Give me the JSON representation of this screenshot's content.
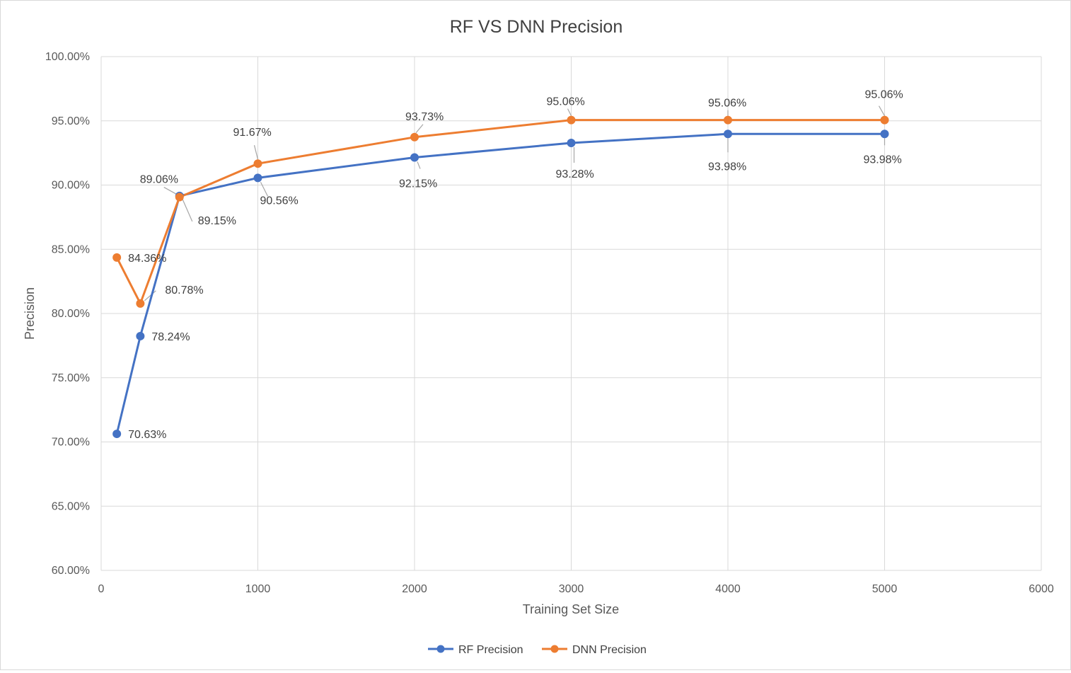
{
  "chart_data": {
    "type": "line",
    "title": "RF VS DNN Precision",
    "xlabel": "Training Set Size",
    "ylabel": "Precision",
    "xlim": [
      0,
      6000
    ],
    "ylim": [
      0.6,
      1.0
    ],
    "x_ticks": [
      0,
      1000,
      2000,
      3000,
      4000,
      5000,
      6000
    ],
    "x_tick_labels": [
      "0",
      "1000",
      "2000",
      "3000",
      "4000",
      "5000",
      "6000"
    ],
    "y_ticks": [
      0.6,
      0.65,
      0.7,
      0.75,
      0.8,
      0.85,
      0.9,
      0.95,
      1.0
    ],
    "y_tick_labels": [
      "60.00%",
      "65.00%",
      "70.00%",
      "75.00%",
      "80.00%",
      "85.00%",
      "90.00%",
      "95.00%",
      "100.00%"
    ],
    "grid": true,
    "legend_position": "bottom",
    "x": [
      100,
      250,
      500,
      1000,
      2000,
      3000,
      4000,
      5000
    ],
    "series": [
      {
        "name": "RF Precision",
        "color": "#4472c4",
        "values": [
          0.7063,
          0.7824,
          0.8915,
          0.9056,
          0.9215,
          0.9328,
          0.9398,
          0.9398
        ],
        "labels": [
          "70.63%",
          "78.24%",
          "89.15%",
          "90.56%",
          "92.15%",
          "93.28%",
          "93.98%",
          "93.98%"
        ]
      },
      {
        "name": "DNN Precision",
        "color": "#ed7d31",
        "values": [
          0.8436,
          0.8078,
          0.8906,
          0.9167,
          0.9373,
          0.9506,
          0.9506,
          0.9506
        ],
        "labels": [
          "84.36%",
          "80.78%",
          "89.06%",
          "91.67%",
          "93.73%",
          "95.06%",
          "95.06%",
          "95.06%"
        ]
      }
    ]
  }
}
